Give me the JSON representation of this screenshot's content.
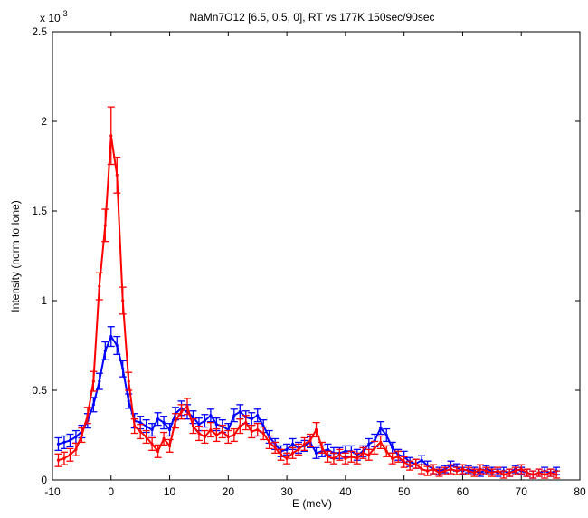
{
  "chart_data": {
    "type": "line",
    "title": "NaMn7O12 [6.5, 0.5, 0], RT vs 177K 150sec/90sec",
    "xlabel": "E (meV)",
    "ylabel": "Intensity (norm to Ione)",
    "y_exponent_label": "x 10",
    "y_exponent": "-3",
    "xlim": [
      -10,
      80
    ],
    "ylim": [
      0,
      2.5
    ],
    "xticks": [
      "-10",
      "0",
      "10",
      "20",
      "30",
      "40",
      "50",
      "60",
      "70",
      "80"
    ],
    "yticks": [
      "0",
      "0.5",
      "1",
      "1.5",
      "2",
      "2.5"
    ],
    "grid": false,
    "legend": "none",
    "series": [
      {
        "color": "#0000ff",
        "x": [
          -9,
          -8,
          -7,
          -6,
          -5,
          -4,
          -3,
          -2,
          -1,
          0,
          1,
          2,
          3,
          4,
          5,
          6,
          7,
          8,
          9,
          10,
          11,
          12,
          13,
          14,
          15,
          16,
          17,
          18,
          19,
          20,
          21,
          22,
          23,
          24,
          25,
          26,
          27,
          28,
          29,
          30,
          31,
          32,
          33,
          34,
          35,
          36,
          37,
          38,
          39,
          40,
          41,
          42,
          43,
          44,
          45,
          46,
          47,
          48,
          49,
          50,
          51,
          52,
          53,
          54,
          55,
          56,
          57,
          58,
          59,
          60,
          61,
          62,
          63,
          64,
          65,
          66,
          67,
          68,
          69,
          70,
          71,
          72,
          73,
          74,
          75,
          76
        ],
        "y": [
          0.2,
          0.21,
          0.22,
          0.24,
          0.27,
          0.33,
          0.42,
          0.55,
          0.72,
          0.8,
          0.75,
          0.62,
          0.44,
          0.33,
          0.32,
          0.3,
          0.28,
          0.34,
          0.32,
          0.28,
          0.37,
          0.4,
          0.38,
          0.35,
          0.31,
          0.33,
          0.36,
          0.31,
          0.3,
          0.28,
          0.36,
          0.38,
          0.35,
          0.34,
          0.36,
          0.3,
          0.24,
          0.2,
          0.16,
          0.17,
          0.2,
          0.18,
          0.19,
          0.21,
          0.15,
          0.16,
          0.17,
          0.15,
          0.15,
          0.16,
          0.16,
          0.14,
          0.16,
          0.2,
          0.22,
          0.29,
          0.25,
          0.18,
          0.14,
          0.13,
          0.1,
          0.09,
          0.11,
          0.08,
          0.06,
          0.05,
          0.06,
          0.08,
          0.07,
          0.05,
          0.06,
          0.05,
          0.04,
          0.06,
          0.05,
          0.04,
          0.05,
          0.04,
          0.06,
          0.05,
          0.04,
          0.03,
          0.04,
          0.05,
          0.04,
          0.05
        ],
        "err": [
          0.035,
          0.035,
          0.035,
          0.035,
          0.035,
          0.04,
          0.04,
          0.045,
          0.05,
          0.055,
          0.05,
          0.045,
          0.04,
          0.04,
          0.035,
          0.035,
          0.035,
          0.035,
          0.035,
          0.035,
          0.035,
          0.04,
          0.04,
          0.035,
          0.035,
          0.035,
          0.035,
          0.035,
          0.035,
          0.035,
          0.035,
          0.04,
          0.035,
          0.035,
          0.035,
          0.035,
          0.035,
          0.03,
          0.03,
          0.03,
          0.03,
          0.03,
          0.03,
          0.03,
          0.03,
          0.03,
          0.03,
          0.03,
          0.03,
          0.03,
          0.03,
          0.03,
          0.03,
          0.03,
          0.035,
          0.035,
          0.035,
          0.03,
          0.03,
          0.03,
          0.025,
          0.025,
          0.025,
          0.025,
          0.025,
          0.02,
          0.02,
          0.025,
          0.02,
          0.02,
          0.02,
          0.02,
          0.02,
          0.02,
          0.02,
          0.02,
          0.02,
          0.02,
          0.02,
          0.02,
          0.02,
          0.02,
          0.02,
          0.02,
          0.02,
          0.02
        ]
      },
      {
        "color": "#ff0000",
        "x": [
          -9,
          -8,
          -7,
          -6,
          -5,
          -4,
          -3,
          -2,
          -1,
          0,
          1,
          2,
          3,
          4,
          5,
          6,
          7,
          8,
          9,
          10,
          11,
          12,
          13,
          14,
          15,
          16,
          17,
          18,
          19,
          20,
          21,
          22,
          23,
          24,
          25,
          26,
          27,
          28,
          29,
          30,
          31,
          32,
          33,
          34,
          35,
          36,
          37,
          38,
          39,
          40,
          41,
          42,
          43,
          44,
          45,
          46,
          47,
          48,
          49,
          50,
          51,
          52,
          53,
          54,
          55,
          56,
          57,
          58,
          59,
          60,
          61,
          62,
          63,
          64,
          65,
          66,
          67,
          68,
          69,
          70,
          71,
          72,
          73,
          74,
          75,
          76
        ],
        "y": [
          0.11,
          0.12,
          0.14,
          0.17,
          0.25,
          0.36,
          0.55,
          1.08,
          1.42,
          1.92,
          1.7,
          1.0,
          0.55,
          0.3,
          0.27,
          0.24,
          0.2,
          0.16,
          0.23,
          0.19,
          0.33,
          0.38,
          0.41,
          0.3,
          0.26,
          0.24,
          0.28,
          0.25,
          0.27,
          0.24,
          0.25,
          0.3,
          0.32,
          0.27,
          0.28,
          0.26,
          0.21,
          0.18,
          0.14,
          0.12,
          0.15,
          0.17,
          0.2,
          0.22,
          0.28,
          0.18,
          0.13,
          0.12,
          0.14,
          0.12,
          0.13,
          0.12,
          0.15,
          0.14,
          0.18,
          0.21,
          0.16,
          0.12,
          0.13,
          0.1,
          0.08,
          0.09,
          0.06,
          0.05,
          0.06,
          0.04,
          0.05,
          0.06,
          0.05,
          0.06,
          0.05,
          0.04,
          0.06,
          0.05,
          0.04,
          0.05,
          0.03,
          0.04,
          0.05,
          0.06,
          0.04,
          0.03,
          0.04,
          0.03,
          0.04,
          0.03
        ],
        "err": [
          0.035,
          0.035,
          0.035,
          0.035,
          0.04,
          0.045,
          0.055,
          0.075,
          0.09,
          0.16,
          0.1,
          0.075,
          0.05,
          0.04,
          0.04,
          0.035,
          0.035,
          0.035,
          0.035,
          0.035,
          0.04,
          0.04,
          0.045,
          0.04,
          0.04,
          0.035,
          0.04,
          0.035,
          0.035,
          0.035,
          0.035,
          0.04,
          0.04,
          0.035,
          0.035,
          0.035,
          0.035,
          0.03,
          0.03,
          0.03,
          0.03,
          0.03,
          0.035,
          0.035,
          0.04,
          0.03,
          0.03,
          0.03,
          0.03,
          0.03,
          0.03,
          0.03,
          0.03,
          0.03,
          0.035,
          0.035,
          0.03,
          0.03,
          0.03,
          0.03,
          0.025,
          0.025,
          0.025,
          0.025,
          0.025,
          0.02,
          0.02,
          0.025,
          0.02,
          0.025,
          0.02,
          0.02,
          0.025,
          0.02,
          0.02,
          0.02,
          0.02,
          0.02,
          0.02,
          0.025,
          0.02,
          0.02,
          0.02,
          0.02,
          0.02,
          0.02
        ]
      }
    ]
  }
}
